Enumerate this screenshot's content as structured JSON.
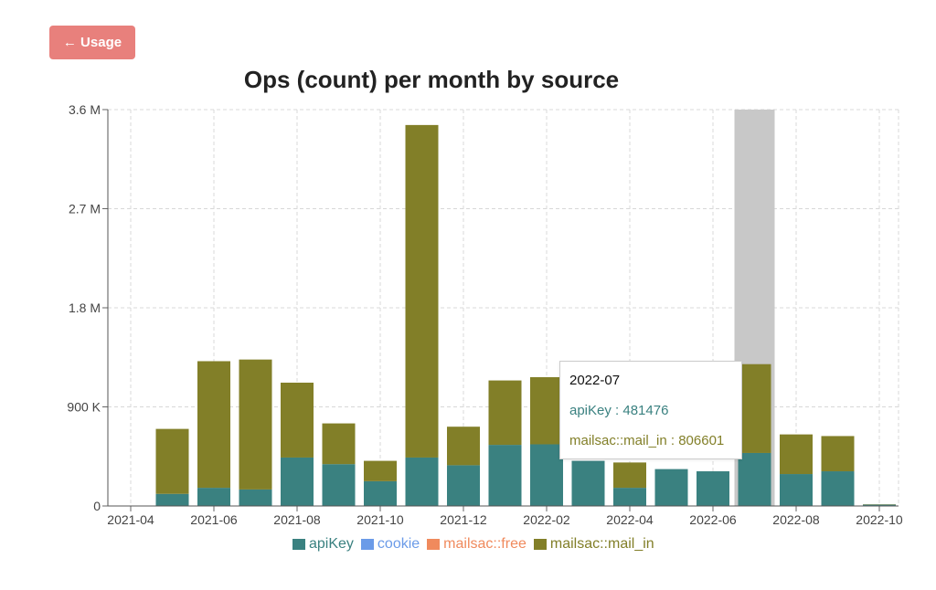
{
  "nav": {
    "back_label": "← Usage"
  },
  "chart_data": {
    "type": "bar",
    "stacked": true,
    "title": "Ops (count) per month by source",
    "xlabel": "",
    "ylabel": "",
    "ylim": [
      0,
      3600000
    ],
    "y_ticks": [
      {
        "value": 0,
        "label": "0"
      },
      {
        "value": 900000,
        "label": "900 K"
      },
      {
        "value": 1800000,
        "label": "1.8 M"
      },
      {
        "value": 2700000,
        "label": "2.7 M"
      },
      {
        "value": 3600000,
        "label": "3.6 M"
      }
    ],
    "x_tick_labels": [
      "2021-04",
      "2021-06",
      "2021-08",
      "2021-10",
      "2021-12",
      "2022-02",
      "2022-04",
      "2022-06",
      "2022-08",
      "2022-10"
    ],
    "categories": [
      "2021-05",
      "2021-06",
      "2021-07",
      "2021-08",
      "2021-09",
      "2021-10",
      "2021-11",
      "2021-12",
      "2022-01",
      "2022-02",
      "2022-03",
      "2022-04",
      "2022-05",
      "2022-06",
      "2022-07",
      "2022-08",
      "2022-09",
      "2022-10"
    ],
    "series": [
      {
        "name": "apiKey",
        "color": "#3a8180",
        "values": [
          110000,
          165000,
          150000,
          440000,
          380000,
          225000,
          440000,
          370000,
          555000,
          560000,
          410000,
          165000,
          335000,
          315000,
          481476,
          290000,
          315000,
          12000
        ]
      },
      {
        "name": "cookie",
        "color": "#6b9be8",
        "values": [
          0,
          0,
          0,
          0,
          0,
          0,
          0,
          0,
          0,
          0,
          0,
          0,
          0,
          0,
          0,
          0,
          0,
          0
        ]
      },
      {
        "name": "mailsac::free",
        "color": "#f08a5d",
        "values": [
          0,
          0,
          0,
          0,
          0,
          0,
          0,
          0,
          0,
          0,
          0,
          0,
          0,
          0,
          0,
          0,
          0,
          0
        ]
      },
      {
        "name": "mailsac::mail_in",
        "color": "#827f28",
        "values": [
          590000,
          1150000,
          1180000,
          680000,
          370000,
          185000,
          3020000,
          350000,
          585000,
          610000,
          0,
          230000,
          0,
          0,
          806601,
          360000,
          320000,
          3000
        ]
      }
    ],
    "highlight_category": "2022-07",
    "grid": true,
    "legend_position": "bottom",
    "tooltip": {
      "label": "2022-07",
      "rows": [
        {
          "text": "apiKey : 481476",
          "color": "#3a8180"
        },
        {
          "text": "mailsac::mail_in : 806601",
          "color": "#827f28"
        }
      ]
    }
  }
}
